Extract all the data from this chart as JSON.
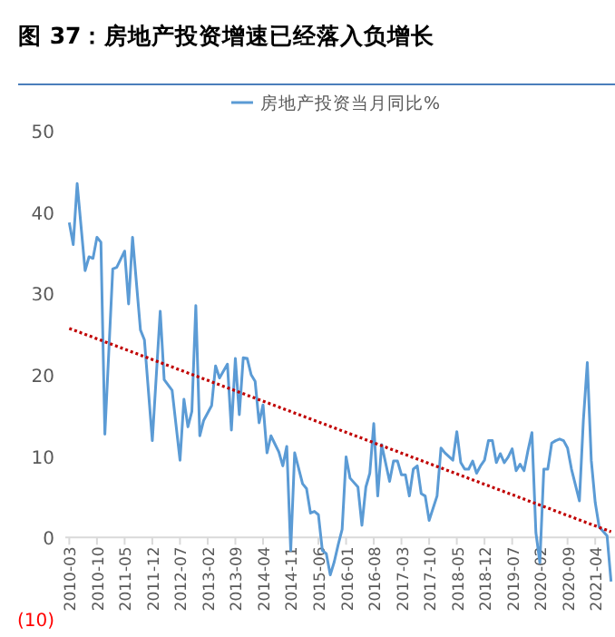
{
  "chart_data": {
    "type": "line",
    "title": "图 37：房地产投资增速已经落入负增长",
    "legend": "top",
    "marker": "none",
    "grid": false,
    "xlim": [
      "2010-02",
      "2021-09"
    ],
    "xticks": [
      "2010-03",
      "2010-10",
      "2011-05",
      "2011-12",
      "2012-07",
      "2013-02",
      "2013-09",
      "2014-04",
      "2014-11",
      "2015-06",
      "2016-01",
      "2016-08",
      "2017-03",
      "2017-10",
      "2018-05",
      "2018-12",
      "2019-07",
      "2020-02",
      "2020-09",
      "2021-04"
    ],
    "ylim": [
      -10,
      50
    ],
    "yticks": [
      {
        "value": -10,
        "label": "(10)"
      },
      0,
      10,
      20,
      30,
      40,
      50
    ],
    "series": [
      {
        "name": "房地产投资当月同比%",
        "color": "#5b9bd5",
        "line_style": "solid",
        "x": [
          "2010-03",
          "2010-04",
          "2010-05",
          "2010-07",
          "2010-08",
          "2010-09",
          "2010-10",
          "2010-11",
          "2010-12",
          "2011-02",
          "2011-03",
          "2011-05",
          "2011-06",
          "2011-07",
          "2011-09",
          "2011-10",
          "2011-12",
          "2012-02",
          "2012-03",
          "2012-05",
          "2012-07",
          "2012-08",
          "2012-09",
          "2012-10",
          "2012-11",
          "2012-12",
          "2013-01",
          "2013-03",
          "2013-04",
          "2013-05",
          "2013-07",
          "2013-08",
          "2013-09",
          "2013-10",
          "2013-11",
          "2013-12",
          "2014-01",
          "2014-02",
          "2014-03",
          "2014-04",
          "2014-05",
          "2014-06",
          "2014-07",
          "2014-08",
          "2014-09",
          "2014-10",
          "2014-11",
          "2014-12",
          "2015-02",
          "2015-03",
          "2015-04",
          "2015-05",
          "2015-06",
          "2015-07",
          "2015-08",
          "2015-09",
          "2015-10",
          "2015-11",
          "2015-12",
          "2016-01",
          "2016-02",
          "2016-04",
          "2016-05",
          "2016-06",
          "2016-07",
          "2016-08",
          "2016-09",
          "2016-10",
          "2016-12",
          "2017-01",
          "2017-02",
          "2017-03",
          "2017-04",
          "2017-05",
          "2017-06",
          "2017-07",
          "2017-08",
          "2017-09",
          "2017-10",
          "2017-12",
          "2018-01",
          "2018-02",
          "2018-04",
          "2018-05",
          "2018-06",
          "2018-07",
          "2018-08",
          "2018-09",
          "2018-10",
          "2018-11",
          "2018-12",
          "2019-01",
          "2019-02",
          "2019-03",
          "2019-04",
          "2019-05",
          "2019-06",
          "2019-07",
          "2019-08",
          "2019-09",
          "2019-10",
          "2019-11",
          "2019-12",
          "2020-01",
          "2020-02",
          "2020-03",
          "2020-04",
          "2020-05",
          "2020-06",
          "2020-07",
          "2020-08",
          "2020-09",
          "2020-10",
          "2020-12",
          "2021-01",
          "2021-02",
          "2021-03",
          "2021-04",
          "2021-05",
          "2021-07",
          "2021-08"
        ],
        "values": [
          38.7,
          36,
          43.5,
          32.8,
          34.5,
          34.3,
          36.9,
          36.3,
          12.7,
          33,
          33.2,
          35.2,
          28.7,
          36.9,
          25.5,
          24.3,
          11.9,
          27.8,
          19.4,
          18.1,
          9.5,
          17,
          13.6,
          15.5,
          28.5,
          12.5,
          14.4,
          16.2,
          21.1,
          19.6,
          21.3,
          13.2,
          22,
          15.1,
          22.1,
          22,
          20,
          19.2,
          14.1,
          16.3,
          10.4,
          12.5,
          11.5,
          10.5,
          8.8,
          11.2,
          -1.6,
          10.4,
          6.6,
          6,
          3,
          3.2,
          2.8,
          -1.6,
          -2,
          -4.6,
          -3,
          -0.9,
          1,
          9.9,
          7.3,
          6.2,
          1.5,
          6.2,
          7.9,
          14,
          5.1,
          11.4,
          6.9,
          9.4,
          9.4,
          7.7,
          7.7,
          5.1,
          8.4,
          8.8,
          5.4,
          5.1,
          2.1,
          5.1,
          11,
          10.4,
          9.5,
          13,
          9.2,
          8.4,
          8.4,
          9.4,
          7.9,
          8.8,
          9.5,
          11.9,
          11.9,
          9.2,
          10.3,
          9.2,
          9.9,
          10.9,
          8.2,
          9,
          8.2,
          10.7,
          12.9,
          0.6,
          -3.1,
          8.4,
          8.4,
          11.6,
          11.9,
          12.1,
          11.9,
          11,
          8.4,
          4.5,
          14.4,
          21.5,
          9.5,
          4.3,
          1.3,
          0.2,
          -5.4
        ]
      },
      {
        "type": "line",
        "color": "#c00000",
        "line_style": "dotted",
        "x": [
          "2010-03",
          "2021-08"
        ],
        "values": [
          25.7,
          0.7
        ]
      }
    ]
  }
}
